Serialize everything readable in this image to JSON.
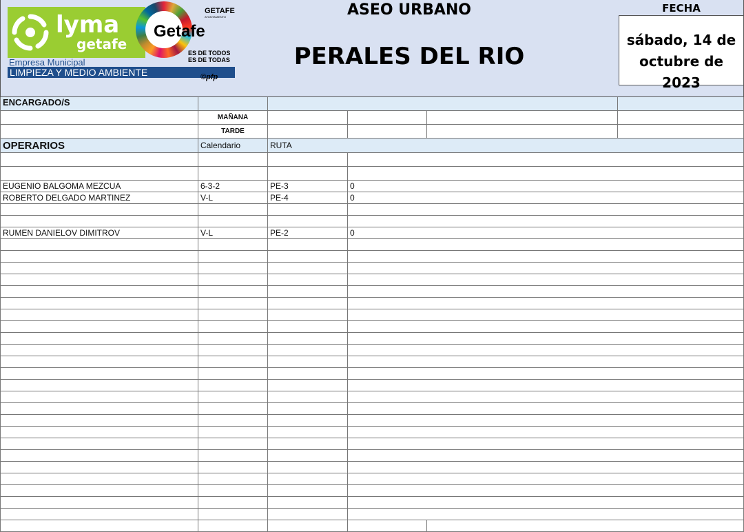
{
  "header": {
    "logo": {
      "brand": "Lyma",
      "brand_sub": "getafe",
      "company_line": "Empresa Municipal",
      "company_name": "LIMPIEZA Y MEDIO AMBIENTE",
      "city_logo": "Getafe",
      "city_tag1": "ES DE TODOS",
      "city_tag2": "ES DE TODAS",
      "ayto": "GETAFE",
      "ayto_sub": "AYUNTAMIENTO",
      "credit": "©pfp"
    },
    "service": "ASEO URBANO",
    "zone": "PERALES DEL RIO",
    "date_label": "FECHA",
    "date_value": "sábado, 14 de octubre de 2023"
  },
  "encargados": {
    "title": "ENCARGADO/S",
    "shifts": [
      "MAÑANA",
      "TARDE"
    ]
  },
  "operarios": {
    "title": "OPERARIOS",
    "col_calendar": "Calendario",
    "col_route": "RUTA",
    "rows": [
      {
        "name": "",
        "calendar": "",
        "route": "",
        "value": ""
      },
      {
        "name": "",
        "calendar": "",
        "route": "",
        "value": ""
      },
      {
        "name": "EUGENIO BALGOMA MEZCUA",
        "calendar": "6-3-2",
        "route": "PE-3",
        "value": "0"
      },
      {
        "name": "ROBERTO DELGADO MARTINEZ",
        "calendar": "V-L",
        "route": "PE-4",
        "value": "0"
      },
      {
        "name": "",
        "calendar": "",
        "route": "",
        "value": ""
      },
      {
        "name": "",
        "calendar": "",
        "route": "",
        "value": ""
      },
      {
        "name": "RUMEN DANIELOV DIMITROV",
        "calendar": "V-L",
        "route": "PE-2",
        "value": "0"
      }
    ]
  },
  "colors": {
    "header_bg": "#d9e1f2",
    "section_bg": "#ddebf7",
    "lyma_green": "#9acd32",
    "banner_blue": "#1f4e8c"
  }
}
